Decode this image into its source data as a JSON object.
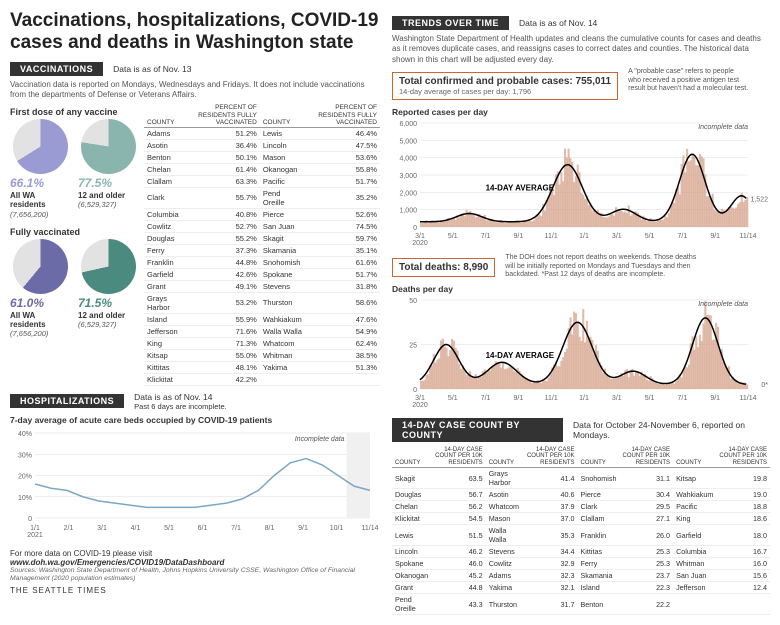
{
  "title": "Vaccinations, hospitalizations, COVID-19 cases and deaths in Washington state",
  "vacc": {
    "section": "VACCINATIONS",
    "date": "Data is as of Nov. 13",
    "note": "Vaccination data is reported on Mondays, Wednesdays and Fridays. It does not include vaccinations from the departments of Defense or Veterans Affairs.",
    "first_hdr": "First dose of any vaccine",
    "fully_hdr": "Fully vaccinated",
    "pie_colors": {
      "first_all": "#9b9bd4",
      "first_12": "#8ab5ae",
      "fully_all": "#6b6ba8",
      "fully_12": "#4a8a7f",
      "bg": "#e2e2e2"
    },
    "groups": [
      {
        "pct": "66.1%",
        "lbl": "All WA residents",
        "pop": "(7,656,200)",
        "val": 66.1,
        "key": "first_all"
      },
      {
        "pct": "77.5%",
        "lbl": "12 and older",
        "pop": "(6,529,327)",
        "val": 77.5,
        "key": "first_12"
      },
      {
        "pct": "61.0%",
        "lbl": "All WA residents",
        "pop": "(7,656,200)",
        "val": 61.0,
        "key": "fully_all"
      },
      {
        "pct": "71.5%",
        "lbl": "12 and older",
        "pop": "(6,529,327)",
        "val": 71.5,
        "key": "fully_12"
      }
    ],
    "table_hdr": [
      "COUNTY",
      "PERCENT OF RESIDENTS FULLY VACCINATED",
      "COUNTY",
      "PERCENT OF RESIDENTS FULLY VACCINATED"
    ],
    "table_rows": [
      [
        "Adams",
        "51.2",
        "Lewis",
        "46.4"
      ],
      [
        "Asotin",
        "36.4",
        "Lincoln",
        "47.5"
      ],
      [
        "Benton",
        "50.1",
        "Mason",
        "53.6"
      ],
      [
        "Chelan",
        "61.4",
        "Okanogan",
        "55.8"
      ],
      [
        "Clallam",
        "63.3",
        "Pacific",
        "51.7"
      ],
      [
        "Clark",
        "55.7",
        "Pend Oreille",
        "35.2"
      ],
      [
        "Columbia",
        "40.8",
        "Pierce",
        "52.6"
      ],
      [
        "Cowlitz",
        "52.7",
        "San Juan",
        "74.5"
      ],
      [
        "Douglas",
        "55.2",
        "Skagit",
        "59.7"
      ],
      [
        "Ferry",
        "37.3",
        "Skamania",
        "35.1"
      ],
      [
        "Franklin",
        "44.8",
        "Snohomish",
        "61.6"
      ],
      [
        "Garfield",
        "42.6",
        "Spokane",
        "51.7"
      ],
      [
        "Grant",
        "49.1",
        "Stevens",
        "31.8"
      ],
      [
        "Grays Harbor",
        "53.2",
        "Thurston",
        "58.6"
      ],
      [
        "Island",
        "55.9",
        "Wahkiakum",
        "47.6"
      ],
      [
        "Jefferson",
        "71.6",
        "Walla Walla",
        "54.9"
      ],
      [
        "King",
        "71.3",
        "Whatcom",
        "62.4"
      ],
      [
        "Kitsap",
        "55.0",
        "Whitman",
        "38.5"
      ],
      [
        "Kittitas",
        "48.1",
        "Yakima",
        "51.3"
      ],
      [
        "Klickitat",
        "42.2",
        "",
        ""
      ]
    ]
  },
  "hosp": {
    "section": "HOSPITALIZATIONS",
    "date": "Data is as of Nov. 14",
    "subnote": "Past 6 days are incomplete.",
    "chart_title": "7-day average of acute care beds occupied by COVID-19 patients",
    "color": "#7ba8c4",
    "ylim": [
      0,
      40
    ],
    "ytick": 10,
    "xlabels": [
      "1/1",
      "2/1",
      "3/1",
      "4/1",
      "5/1",
      "6/1",
      "7/1",
      "8/1",
      "9/1",
      "10/1",
      "11/14"
    ],
    "xyear": "2021",
    "incomplete": "Incomplete data",
    "series": [
      16,
      14,
      13,
      10,
      8,
      7,
      6,
      5,
      5,
      5,
      5,
      6,
      7,
      9,
      13,
      20,
      26,
      28,
      25,
      20,
      15,
      13
    ]
  },
  "trends": {
    "section": "TRENDS OVER TIME",
    "date": "Data is as of Nov. 14",
    "note": "Washington State Department of Health updates and cleans the cumulative counts for cases and deaths as it removes duplicate cases, and reassigns cases to correct dates and counties. The historical data shown in this chart will be adjusted every day.",
    "cases_box_big": "Total confirmed and probable cases: 755,011",
    "cases_box_sm": "14-day average of cases per day: 1,796",
    "cases_side": "A \"probable case\" refers to people who received a positive antigen test result but haven't had a molecular test.",
    "cases_title": "Reported cases per day",
    "cases_color": "#d4a088",
    "cases_ylim": [
      0,
      6000
    ],
    "cases_ytick": 1000,
    "cases_end": "1,522",
    "deaths_box_big": "Total deaths: 8,990",
    "deaths_side": "The DOH does not report deaths on weekends. Those deaths will be initially reported on Mondays and Tuesdays and then backdated. *Past 12 days of deaths are incomplete.",
    "deaths_title": "Deaths per day",
    "deaths_color": "#d4a088",
    "deaths_ylim": [
      0,
      50
    ],
    "deaths_ytick": 25,
    "deaths_end": "0*",
    "xlabels": [
      "3/1",
      "5/1",
      "7/1",
      "9/1",
      "11/1",
      "1/1",
      "3/1",
      "5/1",
      "7/1",
      "9/1",
      "11/14"
    ],
    "xyear": "2020",
    "avg_label": "14-DAY AVERAGE",
    "incomplete": "Incomplete data"
  },
  "countycases": {
    "section": "14-DAY CASE COUNT BY COUNTY",
    "date": "Data for October 24-November 6, reported on Mondays.",
    "hdr": [
      "COUNTY",
      "14-DAY CASE COUNT PER 10K RESIDENTS"
    ],
    "rows": [
      [
        "Skagit",
        "63.5",
        "Grays Harbor",
        "41.4",
        "Snohomish",
        "31.1",
        "Kitsap",
        "19.8"
      ],
      [
        "Douglas",
        "56.7",
        "Asotin",
        "40.6",
        "Pierce",
        "30.4",
        "Wahkiakum",
        "19.0"
      ],
      [
        "Chelan",
        "56.2",
        "Whatcom",
        "37.9",
        "Clark",
        "29.5",
        "Pacific",
        "18.8"
      ],
      [
        "Klickitat",
        "54.5",
        "Mason",
        "37.0",
        "Clallam",
        "27.1",
        "King",
        "18.6"
      ],
      [
        "Lewis",
        "51.5",
        "Walla Walla",
        "35.3",
        "Franklin",
        "26.0",
        "Garfield",
        "18.0"
      ],
      [
        "Lincoln",
        "46.2",
        "Stevens",
        "34.4",
        "Kittitas",
        "25.3",
        "Columbia",
        "16.7"
      ],
      [
        "Spokane",
        "46.0",
        "Cowlitz",
        "32.9",
        "Ferry",
        "25.3",
        "Whitman",
        "16.0"
      ],
      [
        "Okanogan",
        "45.2",
        "Adams",
        "32.3",
        "Skamania",
        "23.7",
        "San Juan",
        "15.6"
      ],
      [
        "Grant",
        "44.8",
        "Yakima",
        "32.1",
        "Island",
        "22.3",
        "Jefferson",
        "12.4"
      ],
      [
        "Pend Oreille",
        "43.3",
        "Thurston",
        "31.7",
        "Benton",
        "22.2",
        "",
        ""
      ]
    ]
  },
  "footer": {
    "more": "For more data on COVID-19 please visit",
    "link": "www.doh.wa.gov/Emergencies/COVID19/DataDashboard",
    "src": "Sources: Washington State Department of Health, Johns Hopkins University CSSE, Washington Office of Financial Management (2020 population estimates)",
    "brand": "THE SEATTLE TIMES"
  }
}
